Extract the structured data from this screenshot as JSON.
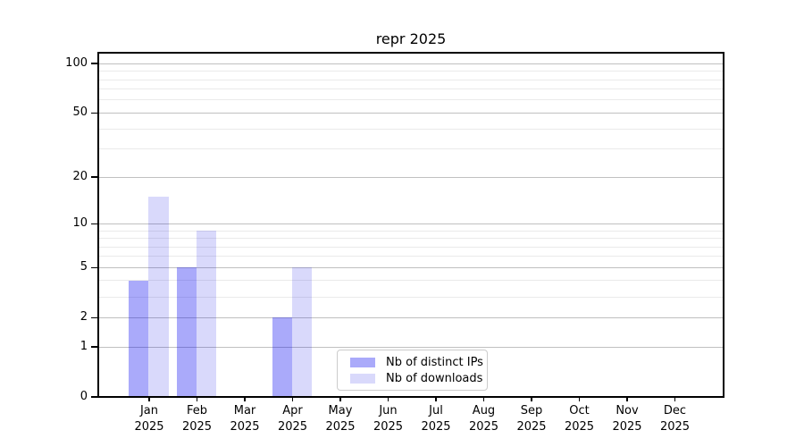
{
  "chart_data": {
    "type": "bar",
    "title": "repr 2025",
    "categories": [
      "Jan",
      "Feb",
      "Mar",
      "Apr",
      "May",
      "Jun",
      "Jul",
      "Aug",
      "Sep",
      "Oct",
      "Nov",
      "Dec"
    ],
    "x_year_label": "2025",
    "series": [
      {
        "name": "Nb of distinct IPs",
        "color": "rgba(0,0,240,0.335)",
        "values": [
          4,
          5,
          0,
          2,
          0,
          0,
          0,
          0,
          0,
          0,
          0,
          0
        ]
      },
      {
        "name": "Nb of downloads",
        "color": "rgba(0,0,230,0.15)",
        "values": [
          15,
          9,
          0,
          5,
          0,
          0,
          0,
          0,
          0,
          0,
          0,
          0
        ]
      }
    ],
    "y_scale": "log1p",
    "y_major_ticks": [
      0,
      1,
      2,
      5,
      10,
      20,
      50,
      100
    ],
    "y_minor_ticks": [
      3,
      4,
      6,
      7,
      8,
      9,
      30,
      40,
      60,
      70,
      80,
      90
    ],
    "ylim": [
      0,
      116
    ],
    "grid": true,
    "legend_position": "bottom-center"
  },
  "colors": {
    "grid_major": "#c0c0c0",
    "grid_minor": "#eaeaea",
    "axis": "#000000",
    "legend_border": "#cccccc",
    "background": "#ffffff"
  }
}
